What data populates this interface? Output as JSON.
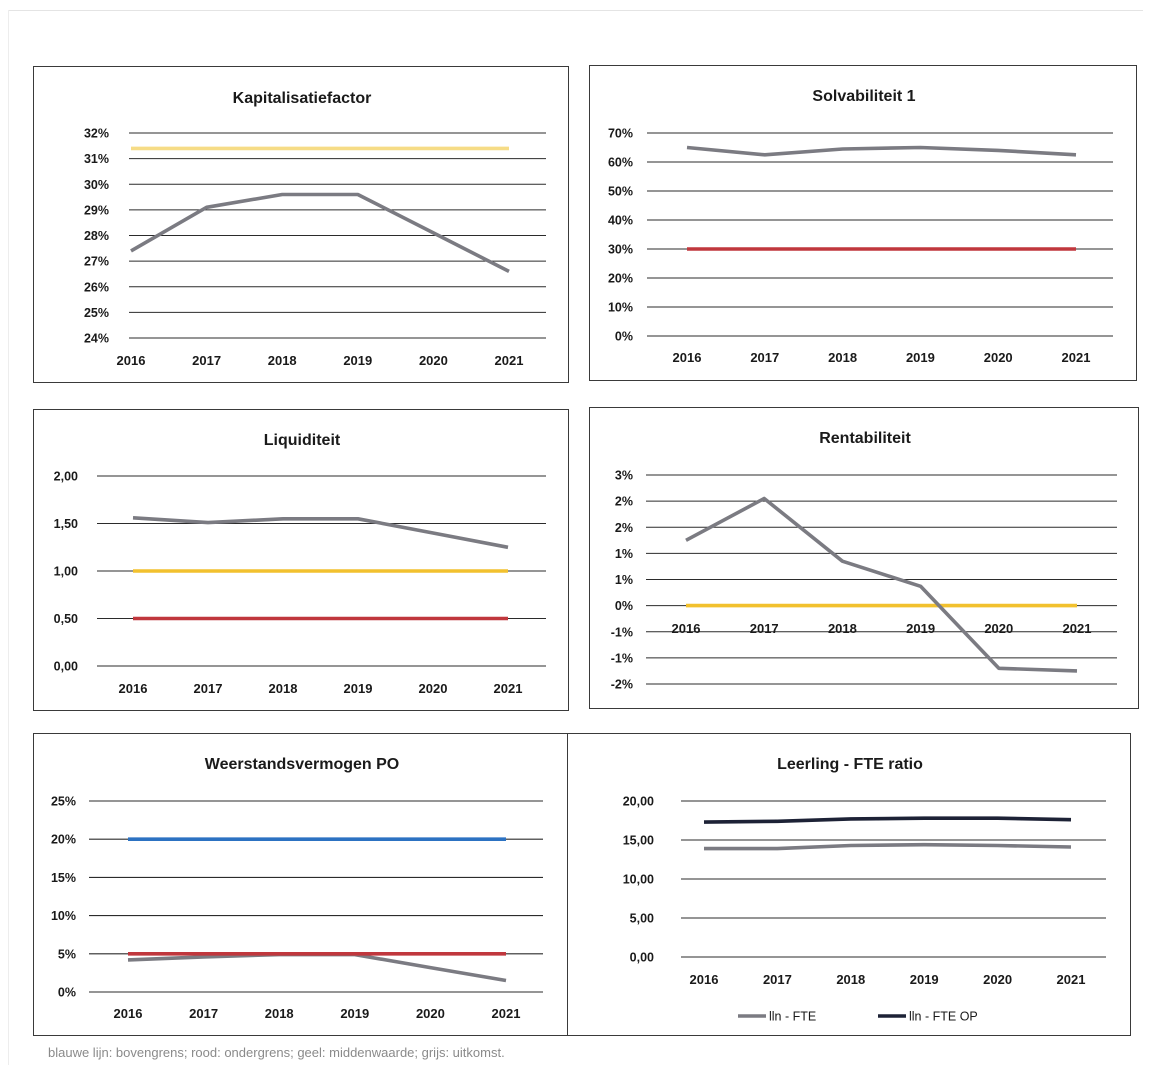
{
  "footnote": "blauwe lijn: bovengrens; rood: ondergrens; geel: middenwaarde;  grijs: uitkomst.",
  "colors": {
    "grey": "#7b7b82",
    "yellow": "#f2c12e",
    "yellow_light": "#f6dc86",
    "red": "#c0373d",
    "blue": "#2c72c2",
    "navy": "#1d2236"
  },
  "chart_data": [
    {
      "id": "kapitalisatie",
      "type": "line",
      "title": "Kapitalisatiefactor",
      "categories": [
        "2016",
        "2017",
        "2018",
        "2019",
        "2020",
        "2021"
      ],
      "yticks": [
        "24%",
        "25%",
        "26%",
        "27%",
        "28%",
        "29%",
        "30%",
        "31%",
        "32%"
      ],
      "ylim": [
        24,
        32
      ],
      "grid": true,
      "legend": [],
      "series": [
        {
          "color": "yellow_light",
          "values": [
            31.4,
            31.4,
            31.4,
            31.4,
            31.4,
            31.4
          ]
        },
        {
          "color": "grey",
          "values": [
            27.4,
            29.1,
            29.6,
            29.6,
            28.1,
            26.6
          ]
        }
      ]
    },
    {
      "id": "solvabiliteit",
      "type": "line",
      "title": "Solvabiliteit 1",
      "categories": [
        "2016",
        "2017",
        "2018",
        "2019",
        "2020",
        "2021"
      ],
      "yticks": [
        "0%",
        "10%",
        "20%",
        "30%",
        "40%",
        "50%",
        "60%",
        "70%"
      ],
      "ylim": [
        0,
        70
      ],
      "grid": true,
      "legend": [],
      "series": [
        {
          "color": "red",
          "values": [
            30,
            30,
            30,
            30,
            30,
            30
          ]
        },
        {
          "color": "grey",
          "values": [
            65,
            62.5,
            64.5,
            65,
            64,
            62.5
          ]
        }
      ]
    },
    {
      "id": "liquiditeit",
      "type": "line",
      "title": "Liquiditeit",
      "categories": [
        "2016",
        "2017",
        "2018",
        "2019",
        "2020",
        "2021"
      ],
      "yticks": [
        "0,00",
        "0,50",
        "1,00",
        "1,50",
        "2,00"
      ],
      "ylim": [
        0,
        2
      ],
      "grid": true,
      "legend": [],
      "series": [
        {
          "color": "yellow",
          "values": [
            1.0,
            1.0,
            1.0,
            1.0,
            1.0,
            1.0
          ]
        },
        {
          "color": "red",
          "values": [
            0.5,
            0.5,
            0.5,
            0.5,
            0.5,
            0.5
          ]
        },
        {
          "color": "grey",
          "values": [
            1.56,
            1.51,
            1.55,
            1.55,
            1.4,
            1.25
          ]
        }
      ]
    },
    {
      "id": "rentabiliteit",
      "type": "line",
      "title": "Rentabiliteit",
      "categories": [
        "2016",
        "2017",
        "2018",
        "2019",
        "2020",
        "2021"
      ],
      "yticks": [
        "-2%",
        "-1%",
        "-1%",
        "0%",
        "1%",
        "1%",
        "2%",
        "2%",
        "3%"
      ],
      "ylim": [
        -1.5,
        2.5
      ],
      "grid": true,
      "legend": [],
      "xlabels_at_zero": true,
      "series": [
        {
          "color": "yellow",
          "values": [
            0,
            0,
            0,
            0,
            0,
            0
          ]
        },
        {
          "color": "grey",
          "values": [
            1.25,
            2.05,
            0.85,
            0.37,
            -1.2,
            -1.25
          ]
        }
      ]
    },
    {
      "id": "weerstand",
      "type": "line",
      "title": "Weerstandsvermogen PO",
      "categories": [
        "2016",
        "2017",
        "2018",
        "2019",
        "2020",
        "2021"
      ],
      "yticks": [
        "0%",
        "5%",
        "10%",
        "15%",
        "20%",
        "25%"
      ],
      "ylim": [
        0,
        25
      ],
      "grid": true,
      "legend": [],
      "series": [
        {
          "color": "blue",
          "values": [
            20,
            20,
            20,
            20,
            20,
            20
          ]
        },
        {
          "color": "grey",
          "values": [
            4.2,
            4.6,
            4.9,
            4.9,
            3.2,
            1.5
          ]
        },
        {
          "color": "red",
          "values": [
            5,
            5,
            5,
            5,
            5,
            5
          ]
        }
      ]
    },
    {
      "id": "leerling",
      "type": "line",
      "title": "Leerling - FTE ratio",
      "categories": [
        "2016",
        "2017",
        "2018",
        "2019",
        "2020",
        "2021"
      ],
      "yticks": [
        "0,00",
        "5,00",
        "10,00",
        "15,00",
        "20,00"
      ],
      "ylim": [
        0,
        20
      ],
      "grid": true,
      "legend": [
        "lln - FTE",
        "lln - FTE OP"
      ],
      "series": [
        {
          "name": "lln - FTE",
          "color": "grey",
          "values": [
            13.9,
            13.9,
            14.3,
            14.4,
            14.3,
            14.1
          ]
        },
        {
          "name": "lln - FTE OP",
          "color": "navy",
          "values": [
            17.3,
            17.4,
            17.7,
            17.8,
            17.8,
            17.6
          ]
        }
      ]
    }
  ]
}
